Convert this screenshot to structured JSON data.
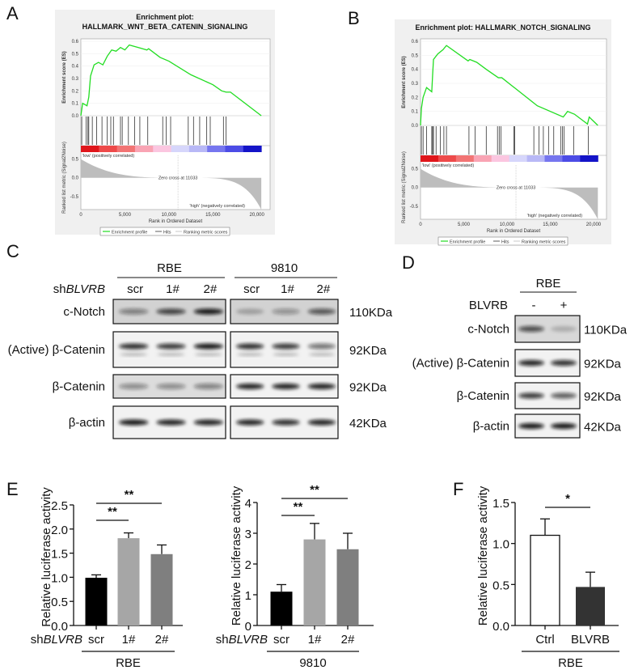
{
  "panels": {
    "A": "A",
    "B": "B",
    "C": "C",
    "D": "D",
    "E": "E",
    "F": "F"
  },
  "chart_data": [
    {
      "id": "A",
      "type": "line",
      "title_line1": "Enrichment plot:",
      "title_line2": "HALLMARK_WNT_BETA_CATENIN_SIGNALING",
      "ylabel_top": "Enrichment score (ES)",
      "ylabel_bottom": "Ranked list metric (Signal2Noise)",
      "xlabel": "Rank in Ordered Dataset",
      "x_ticks": [
        "0",
        "5,000",
        "10,000",
        "15,000",
        "20,000"
      ],
      "es_ticks": [
        "0.0",
        "0.1",
        "0.2",
        "0.3",
        "0.4",
        "0.5",
        "0.6"
      ],
      "metric_ticks": [
        "0.5",
        "0.0",
        "-0.5"
      ],
      "xlim": [
        0,
        21500
      ],
      "es_ylim": [
        0,
        0.6
      ],
      "metric_ylim": [
        -0.85,
        0.6
      ],
      "low_label": "'low' (positively correlated)",
      "high_label": "'high' (negatively correlated)",
      "zero_cross": "Zero cross at 11033",
      "legend": [
        "Enrichment profile",
        "Hits",
        "Ranking metric scores"
      ],
      "line_color": "#22dd22",
      "es_curve": [
        [
          0,
          0
        ],
        [
          200,
          0.1
        ],
        [
          700,
          0.08
        ],
        [
          900,
          0.15
        ],
        [
          1100,
          0.32
        ],
        [
          1500,
          0.41
        ],
        [
          2000,
          0.43
        ],
        [
          2500,
          0.41
        ],
        [
          3000,
          0.48
        ],
        [
          3500,
          0.53
        ],
        [
          4000,
          0.52
        ],
        [
          4500,
          0.55
        ],
        [
          5000,
          0.53
        ],
        [
          5500,
          0.57
        ],
        [
          6500,
          0.55
        ],
        [
          7500,
          0.53
        ],
        [
          7700,
          0.54
        ],
        [
          9000,
          0.47
        ],
        [
          10000,
          0.44
        ],
        [
          12500,
          0.33
        ],
        [
          15000,
          0.25
        ],
        [
          16000,
          0.2
        ],
        [
          16500,
          0.19
        ],
        [
          17000,
          0.19
        ],
        [
          20500,
          0
        ]
      ],
      "hits": [
        100,
        600,
        800,
        900,
        1300,
        1800,
        2400,
        3000,
        3400,
        3700,
        4500,
        4700,
        5400,
        6100,
        6700,
        7600,
        9300,
        9700,
        10200,
        12200,
        12800,
        13500,
        14300,
        14700,
        16200,
        16500
      ]
    },
    {
      "id": "B",
      "type": "line",
      "title_line1": "Enrichment plot: HALLMARK_NOTCH_SIGNALING",
      "ylabel_top": "Enrichment score (ES)",
      "ylabel_bottom": "Ranked list metric (Signal2Noise)",
      "xlabel": "Rank in Ordered Dataset",
      "x_ticks": [
        "0",
        "5,000",
        "10,000",
        "15,000",
        "20,000"
      ],
      "es_ticks": [
        "0.0",
        "0.1",
        "0.2",
        "0.3",
        "0.4",
        "0.5",
        "0.6"
      ],
      "metric_ticks": [
        "0.5",
        "0.0",
        "-0.5"
      ],
      "xlim": [
        0,
        21500
      ],
      "es_ylim": [
        0,
        0.6
      ],
      "metric_ylim": [
        -0.85,
        0.6
      ],
      "low_label": "'low' (positively correlated)",
      "high_label": "'high' (negatively correlated)",
      "zero_cross": "Zero cross at 11033",
      "legend": [
        "Enrichment profile",
        "Hits",
        "Ranking metric scores"
      ],
      "line_color": "#22dd22",
      "es_curve": [
        [
          0,
          0
        ],
        [
          100,
          0.12
        ],
        [
          300,
          0.2
        ],
        [
          700,
          0.27
        ],
        [
          1300,
          0.24
        ],
        [
          1400,
          0.36
        ],
        [
          1500,
          0.47
        ],
        [
          2000,
          0.51
        ],
        [
          2600,
          0.54
        ],
        [
          3000,
          0.57
        ],
        [
          5500,
          0.46
        ],
        [
          5700,
          0.47
        ],
        [
          6500,
          0.45
        ],
        [
          7600,
          0.4
        ],
        [
          9000,
          0.34
        ],
        [
          9400,
          0.34
        ],
        [
          13500,
          0.14
        ],
        [
          16500,
          0.06
        ],
        [
          17000,
          0.1
        ],
        [
          17800,
          0.08
        ],
        [
          19300,
          0.01
        ],
        [
          19500,
          0.06
        ],
        [
          20500,
          0
        ]
      ],
      "hits": [
        100,
        300,
        700,
        1300,
        1400,
        1500,
        1800,
        2300,
        2700,
        3000,
        5600,
        6300,
        7600,
        8900,
        9100,
        9300,
        10800,
        10900,
        13100,
        13700,
        14200,
        14800,
        15400,
        16200,
        16400,
        16600,
        17700,
        19400
      ]
    },
    {
      "id": "E-RBE",
      "type": "bar",
      "ylabel": "Relative luciferase activity",
      "group_prefix": "sh",
      "group_gene": "BLVRB",
      "categories": [
        "scr",
        "1#",
        "2#"
      ],
      "values": [
        0.99,
        1.81,
        1.48
      ],
      "errors": [
        0.06,
        0.11,
        0.19
      ],
      "colors": [
        "#000000",
        "#a6a6a6",
        "#7f7f7f"
      ],
      "ylim": [
        0,
        2.5
      ],
      "y_ticks": [
        "0.0",
        "0.5",
        "1.0",
        "1.5",
        "2.0",
        "2.5"
      ],
      "group_label": "RBE",
      "significance": [
        {
          "from": "scr",
          "to": "1#",
          "label": "**"
        },
        {
          "from": "scr",
          "to": "2#",
          "label": "**"
        }
      ]
    },
    {
      "id": "E-9810",
      "type": "bar",
      "ylabel": "Relative luciferase activity",
      "group_prefix": "sh",
      "group_gene": "BLVRB",
      "categories": [
        "scr",
        "1#",
        "2#"
      ],
      "values": [
        1.1,
        2.8,
        2.48
      ],
      "errors": [
        0.23,
        0.52,
        0.52
      ],
      "colors": [
        "#000000",
        "#a6a6a6",
        "#7f7f7f"
      ],
      "ylim": [
        0,
        4
      ],
      "y_ticks": [
        "0",
        "1",
        "2",
        "3",
        "4"
      ],
      "group_label": "9810",
      "significance": [
        {
          "from": "scr",
          "to": "1#",
          "label": "**"
        },
        {
          "from": "scr",
          "to": "2#",
          "label": "**"
        }
      ]
    },
    {
      "id": "F",
      "type": "bar",
      "ylabel": "Relative luciferase activity",
      "categories": [
        "Ctrl",
        "BLVRB"
      ],
      "values": [
        1.1,
        0.47
      ],
      "errors": [
        0.2,
        0.18
      ],
      "colors": [
        "#ffffff",
        "#333333"
      ],
      "ylim": [
        0,
        1.5
      ],
      "y_ticks": [
        "0.0",
        "0.5",
        "1.0",
        "1.5"
      ],
      "group_label": "RBE",
      "significance": [
        {
          "from": "Ctrl",
          "to": "BLVRB",
          "label": "*"
        }
      ]
    }
  ],
  "blot_C": {
    "groups": [
      "RBE",
      "9810"
    ],
    "row_label_prefix": "sh",
    "row_label_gene": "BLVRB",
    "lanes": [
      "scr",
      "1#",
      "2#"
    ],
    "rows": [
      {
        "label": "c-Notch",
        "mw": "110KDa",
        "intensity": [
          [
            0.45,
            0.75,
            0.95
          ],
          [
            0.25,
            0.35,
            0.65
          ]
        ]
      },
      {
        "label": "(Active) β-Catenin",
        "mw": "92KDa",
        "intensity": [
          [
            0.85,
            0.8,
            0.95
          ],
          [
            0.85,
            0.8,
            0.55
          ]
        ]
      },
      {
        "label": "β-Catenin",
        "mw": "92KDa",
        "intensity": [
          [
            0.4,
            0.4,
            0.45
          ],
          [
            0.9,
            0.9,
            0.9
          ]
        ]
      },
      {
        "label": "β-actin",
        "mw": "42KDa",
        "intensity": [
          [
            0.95,
            0.9,
            0.9
          ],
          [
            0.9,
            0.85,
            0.9
          ]
        ]
      }
    ]
  },
  "blot_D": {
    "group": "RBE",
    "row_label": "BLVRB",
    "lanes": [
      "-",
      "+"
    ],
    "rows": [
      {
        "label": "c-Notch",
        "mw": "110KDa",
        "intensity": [
          0.7,
          0.2
        ]
      },
      {
        "label": "(Active) β-Catenin",
        "mw": "92KDa",
        "intensity": [
          0.9,
          0.85
        ]
      },
      {
        "label": "β-Catenin",
        "mw": "92KDa",
        "intensity": [
          0.8,
          0.65
        ]
      },
      {
        "label": "β-actin",
        "mw": "42KDa",
        "intensity": [
          0.95,
          0.95
        ]
      }
    ]
  }
}
